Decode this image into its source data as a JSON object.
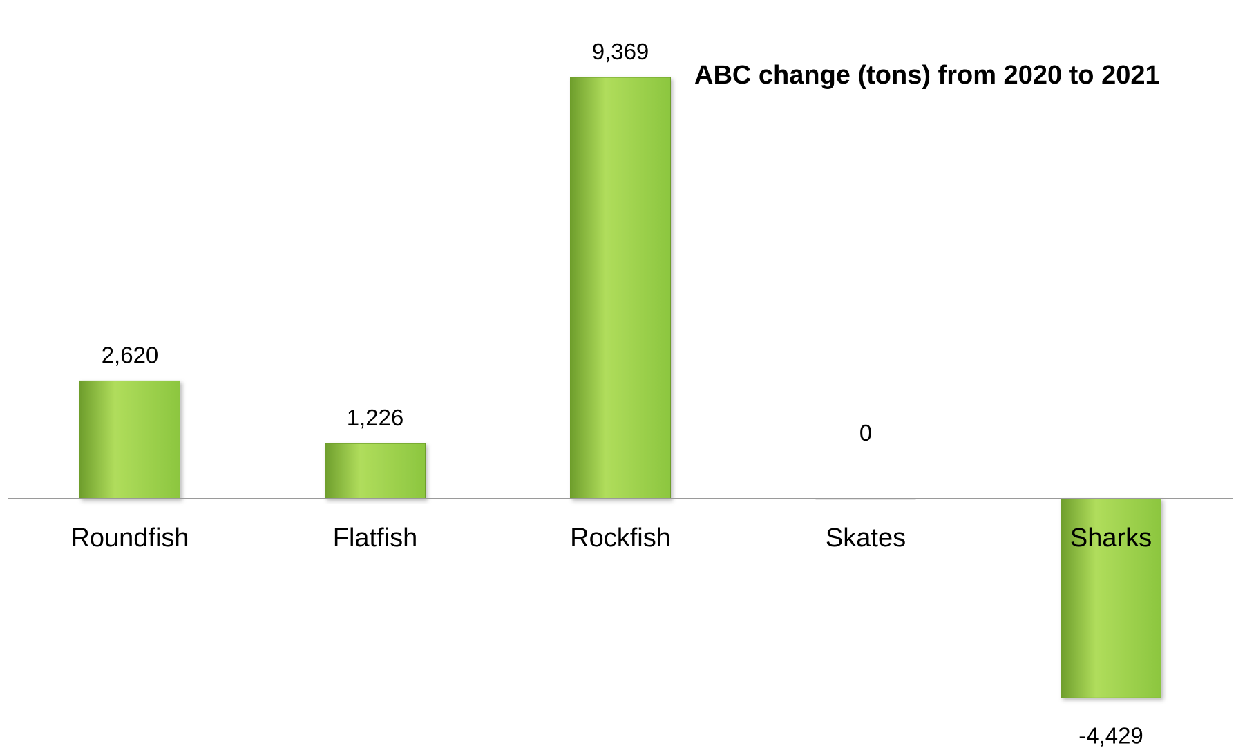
{
  "chart_data": {
    "type": "bar",
    "title": "ABC change (tons) from 2020 to 2021",
    "categories": [
      "Roundfish",
      "Flatfish",
      "Rockfish",
      "Skates",
      "Sharks"
    ],
    "values": [
      2620,
      1226,
      9369,
      0,
      -4429
    ],
    "value_labels": [
      "2,620",
      "1,226",
      "9,369",
      "0",
      "-4,429"
    ],
    "ylim": [
      -5000,
      10000
    ],
    "grid": false,
    "legend": "none",
    "bar_color": "#8cc63f",
    "bar_color_light": "#b0dd5c",
    "bar_color_dark": "#6e9e2c"
  }
}
